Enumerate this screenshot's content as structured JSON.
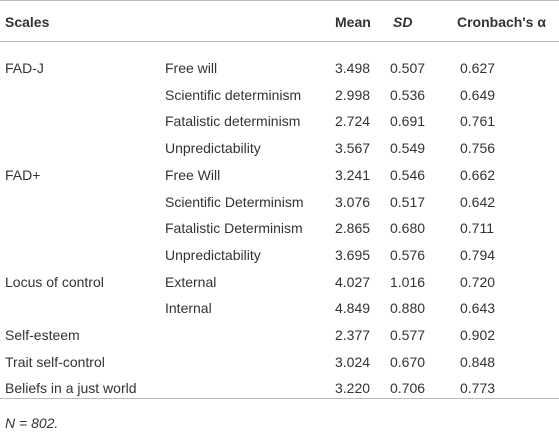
{
  "table": {
    "header": [
      "Scales",
      "Mean",
      "SD",
      "Cronbach's α"
    ],
    "groups": [
      {
        "scale": "FAD-J",
        "rows": [
          {
            "subscale": "Free will",
            "mean": "3.498",
            "sd": "0.507",
            "alpha": "0.627"
          },
          {
            "subscale": "Scientific determinism",
            "mean": "2.998",
            "sd": "0.536",
            "alpha": "0.649"
          },
          {
            "subscale": "Fatalistic determinism",
            "mean": "2.724",
            "sd": "0.691",
            "alpha": "0.761"
          },
          {
            "subscale": "Unpredictability",
            "mean": "3.567",
            "sd": "0.549",
            "alpha": "0.756"
          }
        ]
      },
      {
        "scale": "FAD+",
        "rows": [
          {
            "subscale": "Free Will",
            "mean": "3.241",
            "sd": "0.546",
            "alpha": "0.662"
          },
          {
            "subscale": "Scientific Determinism",
            "mean": "3.076",
            "sd": "0.517",
            "alpha": "0.642"
          },
          {
            "subscale": "Fatalistic Determinism",
            "mean": "2.865",
            "sd": "0.680",
            "alpha": "0.711"
          },
          {
            "subscale": "Unpredictability",
            "mean": "3.695",
            "sd": "0.576",
            "alpha": "0.794"
          }
        ]
      },
      {
        "scale": "Locus of control",
        "rows": [
          {
            "subscale": "External",
            "mean": "4.027",
            "sd": "1.016",
            "alpha": "0.720"
          },
          {
            "subscale": "Internal",
            "mean": "4.849",
            "sd": "0.880",
            "alpha": "0.643"
          }
        ]
      },
      {
        "scale": "Self-esteem",
        "rows": [
          {
            "mean": "2.377",
            "sd": "0.577",
            "alpha": "0.902"
          }
        ]
      },
      {
        "scale": "Trait self-control",
        "rows": [
          {
            "mean": "3.024",
            "sd": "0.670",
            "alpha": "0.848"
          }
        ]
      },
      {
        "scale": "Beliefs in a just world",
        "rows": [
          {
            "mean": "3.220",
            "sd": "0.706",
            "alpha": "0.773"
          }
        ]
      }
    ],
    "note": "N = 802."
  }
}
